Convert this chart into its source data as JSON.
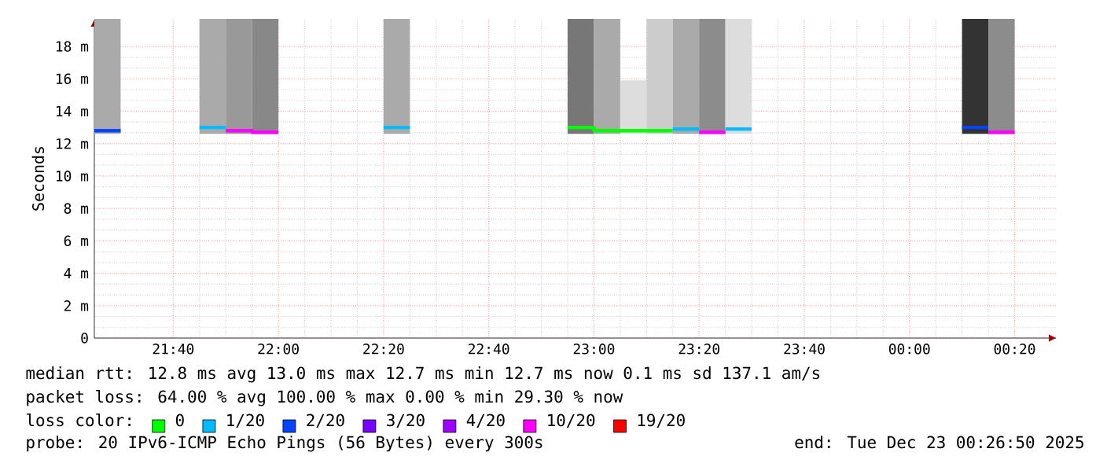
{
  "chart_data": {
    "type": "line",
    "ylabel": "Seconds",
    "xlim": [
      "2025-12-22T21:25",
      "2025-12-23T00:28"
    ],
    "xticks": [
      {
        "value": "2025-12-22T21:40",
        "label": "21:40"
      },
      {
        "value": "2025-12-22T22:00",
        "label": "22:00"
      },
      {
        "value": "2025-12-22T22:20",
        "label": "22:20"
      },
      {
        "value": "2025-12-22T22:40",
        "label": "22:40"
      },
      {
        "value": "2025-12-22T23:00",
        "label": "23:00"
      },
      {
        "value": "2025-12-22T23:20",
        "label": "23:20"
      },
      {
        "value": "2025-12-22T23:40",
        "label": "23:40"
      },
      {
        "value": "2025-12-23T00:00",
        "label": "00:00"
      },
      {
        "value": "2025-12-23T00:20",
        "label": "00:20"
      }
    ],
    "ylim": [
      0,
      19.7
    ],
    "yticks": [
      0,
      {
        "value": 2,
        "label": "2 m"
      },
      {
        "value": 4,
        "label": "4 m"
      },
      {
        "value": 6,
        "label": "6 m"
      },
      {
        "value": 8,
        "label": "8 m"
      },
      {
        "value": 10,
        "label": "10 m"
      },
      {
        "value": 12,
        "label": "12 m"
      },
      {
        "value": 14,
        "label": "14 m"
      },
      {
        "value": 16,
        "label": "16 m"
      },
      {
        "value": 18,
        "label": "18 m"
      }
    ],
    "grid": true,
    "legend": "bottom",
    "legend_title": "loss color:",
    "series": [
      {
        "type": "bar",
        "x": [
          "2025-12-22T21:27:30",
          "2025-12-22T21:47:30",
          "2025-12-22T21:52:30",
          "2025-12-22T21:57:30",
          "2025-12-22T22:22:30",
          "2025-12-22T22:57:30",
          "2025-12-22T23:02:30",
          "2025-12-22T23:07:30",
          "2025-12-22T23:12:30",
          "2025-12-22T23:17:30",
          "2025-12-22T23:22:30",
          "2025-12-22T23:27:30",
          "2025-12-23T00:12:30",
          "2025-12-23T00:17:30"
        ],
        "base": [
          12.6,
          12.6,
          12.6,
          12.6,
          12.6,
          12.6,
          12.6,
          12.6,
          12.6,
          12.6,
          12.6,
          12.6,
          12.6,
          12.6
        ],
        "values": [
          7.1,
          7.1,
          7.1,
          7.1,
          7.1,
          7.1,
          7.1,
          3.3,
          7.1,
          7.1,
          7.1,
          7.1,
          7.1,
          7.1
        ],
        "colors": [
          "#aaaaaa",
          "#aaaaaa",
          "#999999",
          "#888888",
          "#aaaaaa",
          "#777777",
          "#aaaaaa",
          "#dddddd",
          "#cccccc",
          "#aaaaaa",
          "#8c8c8c",
          "#dddddd",
          "#333333",
          "#8c8c8c"
        ]
      },
      {
        "name": "0",
        "color": "#00ff00",
        "x": [
          "2025-12-22T22:55",
          "2025-12-22T23:00",
          "2025-12-22T23:00",
          "2025-12-22T23:05",
          "2025-12-22T23:05",
          "2025-12-22T23:10",
          "2025-12-22T23:10",
          "2025-12-22T23:15"
        ],
        "values": [
          13.0,
          13.0,
          12.8,
          12.8,
          12.8,
          12.8,
          12.8,
          12.8
        ]
      },
      {
        "name": "1/20",
        "color": "#00bbff",
        "x": [
          "2025-12-22T21:45",
          "2025-12-22T21:50",
          "2025-12-22T22:00",
          "2025-12-22T22:20",
          "2025-12-22T22:25",
          "2025-12-22T22:50",
          "2025-12-22T23:15",
          "2025-12-22T23:20",
          "2025-12-22T23:22",
          "2025-12-22T23:25",
          "2025-12-22T23:30"
        ],
        "values": [
          13.0,
          13.0,
          null,
          13.0,
          13.0,
          null,
          12.9,
          12.9,
          null,
          12.9,
          12.9
        ]
      },
      {
        "name": "2/20",
        "color": "#0044ff",
        "x": [
          "2025-12-22T21:25",
          "2025-12-22T21:30",
          "2025-12-22T22:50",
          "2025-12-23T00:10",
          "2025-12-23T00:15"
        ],
        "values": [
          12.8,
          12.8,
          null,
          13.0,
          13.0
        ]
      },
      {
        "name": "3/20",
        "color": "#7700ff"
      },
      {
        "name": "4/20",
        "color": "#a000ff"
      },
      {
        "name": "10/20",
        "color": "#ff00ff",
        "x": [
          "2025-12-22T21:50",
          "2025-12-22T21:55",
          "2025-12-22T21:55",
          "2025-12-22T22:00",
          "2025-12-22T22:50",
          "2025-12-22T23:20",
          "2025-12-22T23:25",
          "2025-12-23T00:00",
          "2025-12-23T00:15",
          "2025-12-23T00:20"
        ],
        "values": [
          12.8,
          12.8,
          12.7,
          12.7,
          null,
          12.7,
          12.7,
          null,
          12.7,
          12.7
        ]
      },
      {
        "name": "19/20",
        "color": "#ff0000"
      }
    ],
    "annotations": [
      "median rtt: 12.8 ms avg 13.0 ms max 12.7 ms min 12.7 ms now 0.1 ms sd 137.1 am/s",
      "packet loss: 64.00 % avg 100.00 % max 0.00 % min 29.30 % now",
      "probe: 20 IPv6-ICMP Echo Pings (56 Bytes) every 300s",
      "end: Tue Dec 23 00:26:50 2025"
    ]
  }
}
